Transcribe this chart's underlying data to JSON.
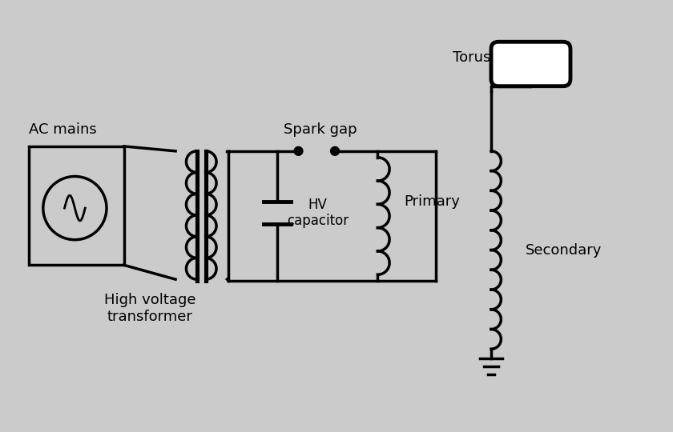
{
  "bg_color": "#cbcbcb",
  "line_color": "#000000",
  "line_width": 2.5,
  "fig_width": 8.4,
  "fig_height": 5.4,
  "labels": {
    "ac_mains": "AC mains",
    "hv_transformer": "High voltage\ntransformer",
    "spark_gap": "Spark gap",
    "hv_capacitor": "HV\ncapacitor",
    "primary": "Primary",
    "secondary": "Secondary",
    "torus": "Torus"
  },
  "font_size": 13
}
